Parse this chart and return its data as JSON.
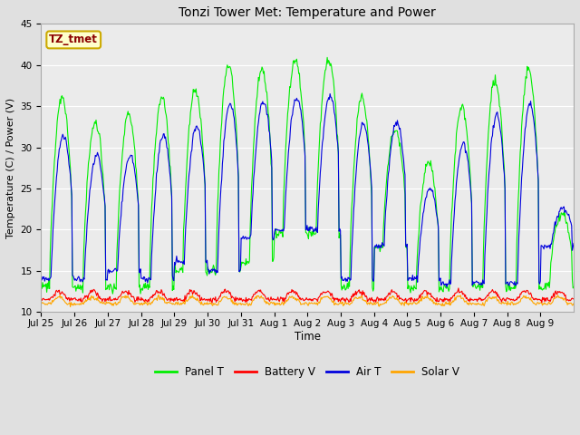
{
  "title": "Tonzi Tower Met: Temperature and Power",
  "xlabel": "Time",
  "ylabel": "Temperature (C) / Power (V)",
  "ylim": [
    10,
    45
  ],
  "yticks": [
    10,
    15,
    20,
    25,
    30,
    35,
    40,
    45
  ],
  "annotation_text": "TZ_tmet",
  "annotation_color": "#8B0000",
  "annotation_bg": "#FFFFCC",
  "annotation_border": "#CCAA00",
  "xtick_labels": [
    "Jul 25",
    "Jul 26",
    "Jul 27",
    "Jul 28",
    "Jul 29",
    "Jul 30",
    "Jul 31",
    "Aug 1",
    "Aug 2",
    "Aug 3",
    "Aug 4",
    "Aug 5",
    "Aug 6",
    "Aug 7",
    "Aug 8",
    "Aug 9"
  ],
  "colors": {
    "panel_t": "#00EE00",
    "battery_v": "#FF0000",
    "air_t": "#0000DD",
    "solar_v": "#FFA500"
  },
  "legend_labels": [
    "Panel T",
    "Battery V",
    "Air T",
    "Solar V"
  ],
  "bg_color": "#E0E0E0",
  "plot_bg": "#EBEBEB",
  "grid_color": "#FFFFFF",
  "n_days": 16,
  "n_per_day": 48,
  "panel_peaks": [
    36,
    33,
    34,
    36,
    37,
    40,
    39.5,
    40.5,
    40.5,
    36,
    32,
    28,
    35,
    38,
    39.5,
    22
  ],
  "panel_troughs": [
    13,
    13,
    13,
    13,
    15,
    15,
    16,
    19.5,
    19.5,
    13,
    18,
    13,
    13,
    13,
    13,
    13
  ],
  "air_peaks": [
    31.5,
    29,
    29,
    31.5,
    32.5,
    35.3,
    35.5,
    36,
    36.2,
    33,
    33,
    25,
    30.5,
    34,
    35.2,
    22.5
  ],
  "air_troughs": [
    14,
    14,
    15,
    14,
    16,
    15,
    19,
    20,
    20,
    14,
    18,
    14,
    13.5,
    13.5,
    13.5,
    18
  ],
  "batt_base": 11.5,
  "batt_amp": 1.0,
  "solar_base": 11.0,
  "solar_amp": 0.8
}
